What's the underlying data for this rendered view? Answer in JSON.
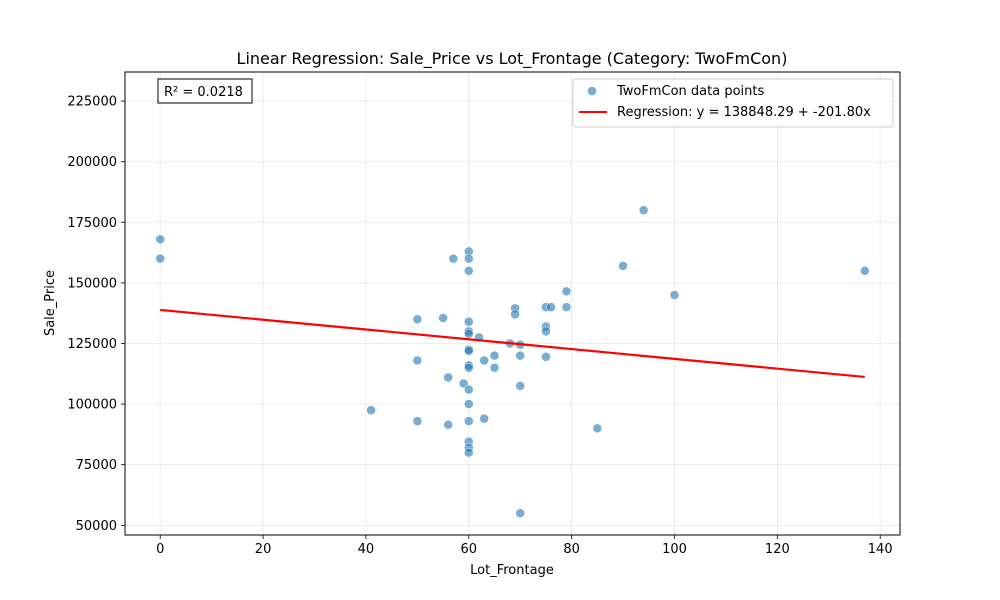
{
  "chart_data": {
    "type": "scatter",
    "title": "Linear Regression: Sale_Price vs Lot_Frontage (Category: TwoFmCon)",
    "xlabel": "Lot_Frontage",
    "ylabel": "Sale_Price",
    "xlim": [
      -6.85,
      143.85
    ],
    "ylim": [
      46000,
      237000
    ],
    "xticks": [
      0,
      20,
      40,
      60,
      80,
      100,
      120,
      140
    ],
    "yticks": [
      50000,
      75000,
      100000,
      125000,
      150000,
      175000,
      200000,
      225000
    ],
    "grid": true,
    "legend_position": "upper right",
    "annotation": "R² = 0.0218",
    "colors": {
      "points": "#1f77b4",
      "regression": "#ff0000"
    },
    "series": [
      {
        "name": "TwoFmCon data points",
        "kind": "scatter",
        "points": [
          [
            0,
            168000
          ],
          [
            0,
            160000
          ],
          [
            41,
            97500
          ],
          [
            50,
            135000
          ],
          [
            50,
            118000
          ],
          [
            50,
            93000
          ],
          [
            55,
            135500
          ],
          [
            56,
            111000
          ],
          [
            56,
            91500
          ],
          [
            57,
            160000
          ],
          [
            59,
            108500
          ],
          [
            60,
            163000
          ],
          [
            60,
            160000
          ],
          [
            60,
            155000
          ],
          [
            60,
            134000
          ],
          [
            60,
            130000
          ],
          [
            60,
            129000
          ],
          [
            60,
            122500
          ],
          [
            60,
            122000
          ],
          [
            60,
            116000
          ],
          [
            60,
            115000
          ],
          [
            60,
            106000
          ],
          [
            60,
            100000
          ],
          [
            60,
            93000
          ],
          [
            60,
            84500
          ],
          [
            60,
            82000
          ],
          [
            60,
            80000
          ],
          [
            62,
            127500
          ],
          [
            63,
            118000
          ],
          [
            63,
            94000
          ],
          [
            65,
            120000
          ],
          [
            65,
            115000
          ],
          [
            68,
            125000
          ],
          [
            69,
            139500
          ],
          [
            69,
            137000
          ],
          [
            70,
            124500
          ],
          [
            70,
            120000
          ],
          [
            70,
            107500
          ],
          [
            70,
            55000
          ],
          [
            75,
            140000
          ],
          [
            75,
            132000
          ],
          [
            75,
            130000
          ],
          [
            75,
            119500
          ],
          [
            76,
            140000
          ],
          [
            79,
            146500
          ],
          [
            79,
            140000
          ],
          [
            85,
            90000
          ],
          [
            90,
            157000
          ],
          [
            94,
            180000
          ],
          [
            100,
            145000
          ],
          [
            137,
            155000
          ]
        ]
      },
      {
        "name": "Regression: y = 138848.29 + -201.80x",
        "kind": "line",
        "intercept": 138848.29,
        "slope": -201.8,
        "x_range": [
          0,
          137
        ]
      }
    ]
  }
}
